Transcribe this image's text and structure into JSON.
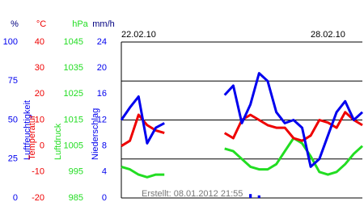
{
  "chart_data": {
    "type": "line",
    "x": [
      0,
      0.25,
      0.5,
      0.75,
      1,
      1.25,
      1.5,
      1.75,
      2,
      2.25,
      2.5,
      2.75,
      3,
      3.25,
      3.5,
      3.75,
      4,
      4.25,
      4.5,
      4.75,
      5,
      5.25,
      5.5,
      5.75,
      6,
      6.25,
      6.5,
      6.75,
      7
    ],
    "xlim": [
      0,
      7
    ],
    "xticks": [
      {
        "value": 0,
        "label": "22.02.10"
      },
      {
        "value": 6,
        "label": "28.02.10"
      }
    ],
    "grid": true,
    "footnote": "Erstellt: 08.01.2012 21:55",
    "axes": [
      {
        "unit": "%",
        "label": "Luftfeuchtigkeit",
        "color": "#0000ee",
        "type": "line",
        "lim": [
          0,
          100
        ],
        "ticks": [
          0,
          25,
          50,
          75,
          100
        ],
        "values": [
          50,
          58,
          65,
          35,
          45,
          48,
          null,
          null,
          null,
          null,
          null,
          null,
          66,
          72,
          48,
          60,
          80,
          75,
          55,
          48,
          50,
          45,
          20,
          25,
          40,
          55,
          62,
          50,
          55
        ]
      },
      {
        "unit": "°C",
        "label": "Temperatur",
        "color": "#ee0000",
        "type": "line",
        "lim": [
          -20,
          40
        ],
        "ticks": [
          -20,
          -10,
          0,
          10,
          20,
          30,
          40
        ],
        "values": [
          0,
          2,
          12,
          8,
          6,
          5,
          null,
          null,
          null,
          null,
          null,
          null,
          5,
          3,
          10,
          12,
          10,
          8,
          7,
          7,
          3,
          2,
          4,
          10,
          9,
          7,
          13,
          10,
          8
        ]
      },
      {
        "unit": "hPa",
        "label": "Luftdruck",
        "color": "#22dd22",
        "type": "line",
        "lim": [
          985,
          1045
        ],
        "ticks": [
          985,
          995,
          1005,
          1015,
          1025,
          1035,
          1045
        ],
        "values": [
          997,
          996,
          994,
          993,
          994,
          994,
          null,
          null,
          null,
          null,
          null,
          null,
          1004,
          1003,
          1000,
          997,
          996,
          996,
          998,
          1003,
          1008,
          1006,
          1001,
          995,
          994,
          995,
          998,
          1002,
          1005
        ]
      },
      {
        "unit": "mm/h",
        "label": "Niederschlag",
        "color": "#0000ee",
        "type": "bar",
        "lim": [
          0,
          24
        ],
        "ticks": [
          0,
          4,
          8,
          12,
          16,
          20,
          24
        ],
        "values": [
          0,
          0,
          0,
          0,
          0,
          0,
          null,
          null,
          null,
          null,
          null,
          null,
          0,
          0,
          0,
          0.6,
          0.4,
          0,
          0,
          0,
          0,
          0,
          0,
          0,
          0,
          0,
          0,
          0,
          0
        ]
      }
    ]
  }
}
